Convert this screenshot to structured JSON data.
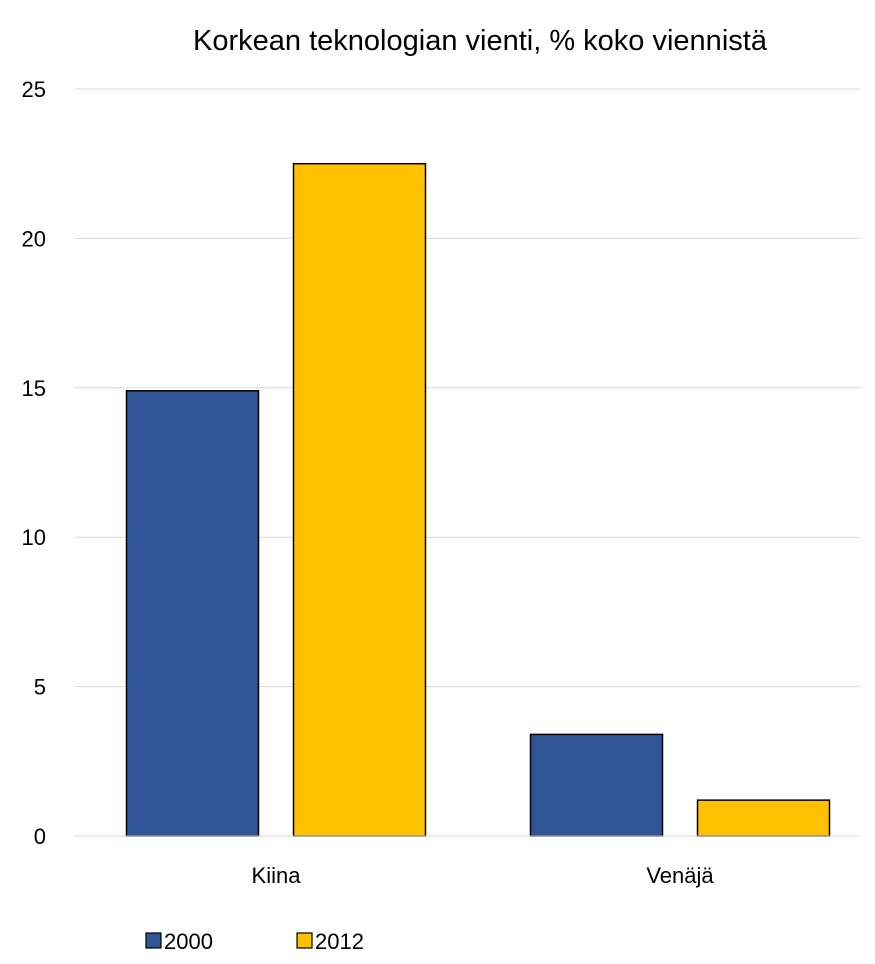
{
  "chart_data": {
    "type": "bar",
    "title": "Korkean teknologian vienti, % koko viennistä",
    "xlabel": "",
    "ylabel": "",
    "categories": [
      "Kiina",
      "Venäjä"
    ],
    "series": [
      {
        "name": "2000",
        "values": [
          14.9,
          3.4
        ],
        "color": "#2f5597"
      },
      {
        "name": "2012",
        "values": [
          22.5,
          1.2
        ],
        "color": "#ffc000"
      }
    ],
    "ylim": [
      0,
      25
    ],
    "yticks": [
      0,
      5,
      10,
      15,
      20,
      25
    ],
    "grid": true,
    "legend_position": "bottom-left"
  }
}
